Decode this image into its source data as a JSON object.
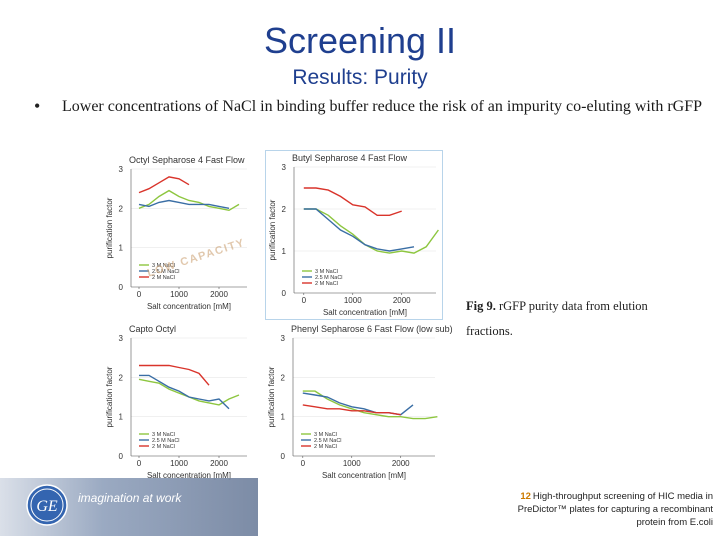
{
  "slide": {
    "title": "Screening II",
    "subtitle": "Results: Purity",
    "bullet": "Lower concentrations of NaCl in binding buffer reduce the risk of an impurity co-eluting with rGFP",
    "caption_bold": "Fig 9.",
    "caption_text": " rGFP purity data from elution fractions.",
    "reference_number": "12",
    "reference_text": "High-throughput screening of HIC media in PreDictor™ plates for capturing a recombinant protein from E.coli",
    "tagline": "imagination at work",
    "watermark": "LOW CAPACITY"
  },
  "colors": {
    "title": "#1f3f8f",
    "green": "#8dc63f",
    "blue": "#3a6ea5",
    "red": "#d9342b"
  },
  "chart_data": [
    {
      "type": "line",
      "title": "Octyl Sepharose 4 Fast Flow",
      "xlabel": "Salt concentration [mM]",
      "ylabel": "purification factor",
      "xticks": [
        0,
        1000,
        2000
      ],
      "yticks": [
        0,
        1,
        2,
        3
      ],
      "xlim": [
        -200,
        2700
      ],
      "ylim": [
        0,
        3
      ],
      "series": [
        {
          "name": "3 M NaCl",
          "color": "#8dc63f",
          "x": [
            0,
            250,
            500,
            750,
            1000,
            1250,
            1500,
            1750,
            2000,
            2250,
            2500
          ],
          "y": [
            2.0,
            2.1,
            2.3,
            2.45,
            2.3,
            2.2,
            2.15,
            2.05,
            2.0,
            1.95,
            2.1
          ]
        },
        {
          "name": "2.5 M NaCl",
          "color": "#3a6ea5",
          "x": [
            0,
            250,
            500,
            750,
            1000,
            1250,
            1500,
            1750,
            2000,
            2250
          ],
          "y": [
            2.1,
            2.05,
            2.15,
            2.2,
            2.15,
            2.1,
            2.1,
            2.1,
            2.05,
            2.0
          ]
        },
        {
          "name": "2 M NaCl",
          "color": "#d9342b",
          "x": [
            0,
            250,
            500,
            750,
            1000,
            1250
          ],
          "y": [
            2.4,
            2.5,
            2.65,
            2.8,
            2.75,
            2.6
          ]
        }
      ]
    },
    {
      "type": "line",
      "title": "Butyl Sepharose 4 Fast Flow",
      "xlabel": "Salt concentration [mM]",
      "ylabel": "purification factor",
      "xticks": [
        0,
        1000,
        2000
      ],
      "yticks": [
        0,
        1,
        2,
        3
      ],
      "xlim": [
        -200,
        2700
      ],
      "ylim": [
        0,
        3
      ],
      "series": [
        {
          "name": "3 M NaCl",
          "color": "#8dc63f",
          "x": [
            0,
            250,
            500,
            750,
            1000,
            1250,
            1500,
            1750,
            2000,
            2250,
            2500,
            2750
          ],
          "y": [
            2.0,
            2.0,
            1.85,
            1.6,
            1.4,
            1.15,
            1.0,
            0.95,
            1.0,
            0.95,
            1.1,
            1.5
          ]
        },
        {
          "name": "2.5 M NaCl",
          "color": "#3a6ea5",
          "x": [
            0,
            250,
            500,
            750,
            1000,
            1250,
            1500,
            1750,
            2000,
            2250
          ],
          "y": [
            2.0,
            2.0,
            1.75,
            1.5,
            1.35,
            1.15,
            1.05,
            1.0,
            1.05,
            1.1
          ]
        },
        {
          "name": "2 M NaCl",
          "color": "#d9342b",
          "x": [
            0,
            250,
            500,
            750,
            1000,
            1250,
            1500,
            1750,
            2000
          ],
          "y": [
            2.5,
            2.5,
            2.45,
            2.3,
            2.1,
            2.05,
            1.85,
            1.85,
            1.95
          ]
        }
      ]
    },
    {
      "type": "line",
      "title": "Capto Octyl",
      "xlabel": "Salt concentration [mM]",
      "ylabel": "purification factor",
      "xticks": [
        0,
        1000,
        2000
      ],
      "yticks": [
        0,
        1,
        2,
        3
      ],
      "xlim": [
        -200,
        2700
      ],
      "ylim": [
        0,
        3
      ],
      "series": [
        {
          "name": "3 M NaCl",
          "color": "#8dc63f",
          "x": [
            0,
            250,
            500,
            750,
            1000,
            1250,
            1500,
            1750,
            2000,
            2250,
            2500
          ],
          "y": [
            1.95,
            1.9,
            1.85,
            1.7,
            1.6,
            1.5,
            1.4,
            1.35,
            1.3,
            1.45,
            1.55
          ]
        },
        {
          "name": "2.5 M NaCl",
          "color": "#3a6ea5",
          "x": [
            0,
            250,
            500,
            750,
            1000,
            1250,
            1500,
            1750,
            2000,
            2250
          ],
          "y": [
            2.05,
            2.05,
            1.9,
            1.75,
            1.65,
            1.5,
            1.45,
            1.4,
            1.45,
            1.2
          ]
        },
        {
          "name": "2 M NaCl",
          "color": "#d9342b",
          "x": [
            0,
            250,
            500,
            750,
            1000,
            1250,
            1500,
            1750
          ],
          "y": [
            2.3,
            2.3,
            2.3,
            2.3,
            2.25,
            2.2,
            2.1,
            1.8
          ]
        }
      ]
    },
    {
      "type": "line",
      "title": "Phenyl Sepharose 6 Fast Flow (low sub)",
      "xlabel": "Salt concentration [mM]",
      "ylabel": "purification factor",
      "xticks": [
        0,
        1000,
        2000
      ],
      "yticks": [
        0,
        1,
        2,
        3
      ],
      "xlim": [
        -200,
        2700
      ],
      "ylim": [
        0,
        3
      ],
      "series": [
        {
          "name": "3 M NaCl",
          "color": "#8dc63f",
          "x": [
            0,
            250,
            500,
            750,
            1000,
            1250,
            1500,
            1750,
            2000,
            2250,
            2500,
            2750
          ],
          "y": [
            1.65,
            1.65,
            1.45,
            1.3,
            1.2,
            1.1,
            1.05,
            1.0,
            1.0,
            0.95,
            0.95,
            1.0
          ]
        },
        {
          "name": "2.5 M NaCl",
          "color": "#3a6ea5",
          "x": [
            0,
            250,
            500,
            750,
            1000,
            1250,
            1500,
            1750,
            2000,
            2250
          ],
          "y": [
            1.6,
            1.55,
            1.5,
            1.35,
            1.25,
            1.2,
            1.1,
            1.1,
            1.05,
            1.3
          ]
        },
        {
          "name": "2 M NaCl",
          "color": "#d9342b",
          "x": [
            0,
            250,
            500,
            750,
            1000,
            1250,
            1500,
            1750,
            2000
          ],
          "y": [
            1.3,
            1.25,
            1.2,
            1.2,
            1.15,
            1.15,
            1.1,
            1.1,
            1.05
          ]
        }
      ]
    }
  ]
}
